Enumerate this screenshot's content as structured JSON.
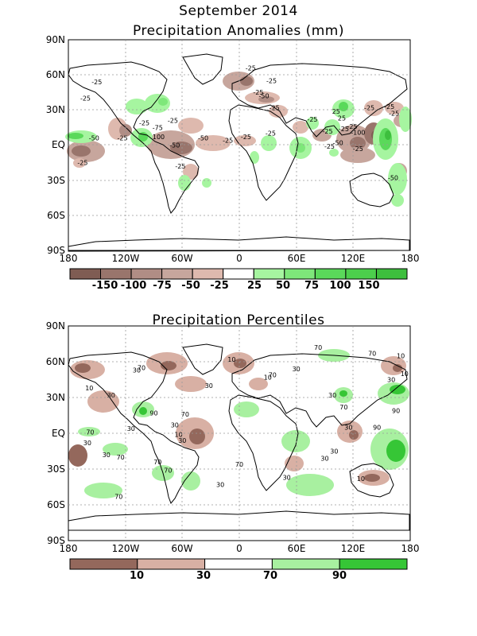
{
  "figure": {
    "title": "September 2014",
    "panel1_title": "Precipitation Anomalies (mm)",
    "panel2_title": "Precipitation Percentiles"
  },
  "lat_labels": [
    "90N",
    "60N",
    "30N",
    "EQ",
    "30S",
    "60S",
    "90S"
  ],
  "lon_labels": [
    "180",
    "120W",
    "60W",
    "0",
    "60E",
    "120E",
    "180"
  ],
  "anomaly_colorbar": {
    "labels": [
      "-150",
      "-100",
      "-75",
      "-50",
      "-25",
      "25",
      "50",
      "75",
      "100",
      "150"
    ],
    "colors": [
      "#7f5c53",
      "#99756c",
      "#b08d85",
      "#c7a69d",
      "#deb9ae",
      "#ffffff",
      "#a6f5a0",
      "#7ee77a",
      "#5ad95a",
      "#4ccf4c",
      "#3dbf3d"
    ]
  },
  "percentile_colorbar": {
    "labels": [
      "10",
      "30",
      "70",
      "90"
    ],
    "colors": [
      "#94685c",
      "#d8b0a4",
      "#ffffff",
      "#a8f0a0",
      "#36c636"
    ]
  },
  "anomaly_contour_labels": [
    {
      "text": "-25",
      "lon": -150,
      "lat": 52
    },
    {
      "text": "-25",
      "lon": -162,
      "lat": 38
    },
    {
      "text": "-50",
      "lon": -153,
      "lat": 4
    },
    {
      "text": "-25",
      "lon": -123,
      "lat": 4
    },
    {
      "text": "-75",
      "lon": -86,
      "lat": 13
    },
    {
      "text": "100",
      "lon": -85,
      "lat": 5
    },
    {
      "text": "-25",
      "lon": -100,
      "lat": 17
    },
    {
      "text": "-25",
      "lon": -70,
      "lat": 19
    },
    {
      "text": "-50",
      "lon": -68,
      "lat": -2
    },
    {
      "text": "-50",
      "lon": -38,
      "lat": 4
    },
    {
      "text": "-25",
      "lon": -12,
      "lat": 2
    },
    {
      "text": "-25",
      "lon": -62,
      "lat": -20
    },
    {
      "text": "-25",
      "lon": -165,
      "lat": -17
    },
    {
      "text": "-25",
      "lon": 12,
      "lat": 64
    },
    {
      "text": "-25",
      "lon": 34,
      "lat": 53
    },
    {
      "text": "-25",
      "lon": 20,
      "lat": 43
    },
    {
      "text": "-50",
      "lon": 26,
      "lat": 40
    },
    {
      "text": "-25",
      "lon": 37,
      "lat": 30
    },
    {
      "text": "-25",
      "lon": 7,
      "lat": 5
    },
    {
      "text": "-25",
      "lon": 33,
      "lat": 8
    },
    {
      "text": "-25",
      "lon": 77,
      "lat": 20
    },
    {
      "text": "-25",
      "lon": 93,
      "lat": 10
    },
    {
      "text": "25",
      "lon": 108,
      "lat": 21
    },
    {
      "text": "25",
      "lon": 102,
      "lat": 27
    },
    {
      "text": "-25",
      "lon": 110,
      "lat": 12
    },
    {
      "text": "-50",
      "lon": 104,
      "lat": 0
    },
    {
      "text": "-25",
      "lon": 95,
      "lat": -3
    },
    {
      "text": "-25",
      "lon": 125,
      "lat": -5
    },
    {
      "text": "-25",
      "lon": 119,
      "lat": 14
    },
    {
      "text": "-100",
      "lon": 125,
      "lat": 9
    },
    {
      "text": "-25",
      "lon": 137,
      "lat": 30
    },
    {
      "text": "-25",
      "lon": 158,
      "lat": 31
    },
    {
      "text": "-25",
      "lon": 163,
      "lat": 25
    },
    {
      "text": "-50",
      "lon": 162,
      "lat": -30
    }
  ],
  "percentile_contour_labels": [
    {
      "text": "10",
      "lon": -158,
      "lat": 36
    },
    {
      "text": "30",
      "lon": -135,
      "lat": 30
    },
    {
      "text": "70",
      "lon": -103,
      "lat": 53
    },
    {
      "text": "30",
      "lon": -108,
      "lat": 51
    },
    {
      "text": "30",
      "lon": -32,
      "lat": 38
    },
    {
      "text": "90",
      "lon": -90,
      "lat": 15
    },
    {
      "text": "70",
      "lon": -57,
      "lat": 14
    },
    {
      "text": "30",
      "lon": -114,
      "lat": 2
    },
    {
      "text": "70",
      "lon": -157,
      "lat": -1
    },
    {
      "text": "30",
      "lon": -160,
      "lat": -10
    },
    {
      "text": "30",
      "lon": -140,
      "lat": -20
    },
    {
      "text": "70",
      "lon": -125,
      "lat": -22
    },
    {
      "text": "30",
      "lon": -68,
      "lat": 5
    },
    {
      "text": "10",
      "lon": -64,
      "lat": -3
    },
    {
      "text": "30",
      "lon": -60,
      "lat": -8
    },
    {
      "text": "70",
      "lon": -86,
      "lat": -26
    },
    {
      "text": "70",
      "lon": -127,
      "lat": -55
    },
    {
      "text": "70",
      "lon": -75,
      "lat": -33
    },
    {
      "text": "30",
      "lon": -20,
      "lat": -45
    },
    {
      "text": "70",
      "lon": 0,
      "lat": -28
    },
    {
      "text": "10",
      "lon": -8,
      "lat": 60
    },
    {
      "text": "10",
      "lon": 30,
      "lat": 45
    },
    {
      "text": "30",
      "lon": 60,
      "lat": 52
    },
    {
      "text": "70",
      "lon": 35,
      "lat": 47
    },
    {
      "text": "70",
      "lon": 83,
      "lat": 70
    },
    {
      "text": "70",
      "lon": 140,
      "lat": 65
    },
    {
      "text": "70",
      "lon": 110,
      "lat": 20
    },
    {
      "text": "30",
      "lon": 98,
      "lat": 30
    },
    {
      "text": "30",
      "lon": 115,
      "lat": 3
    },
    {
      "text": "30",
      "lon": 100,
      "lat": -17
    },
    {
      "text": "30",
      "lon": 90,
      "lat": -23
    },
    {
      "text": "30",
      "lon": 50,
      "lat": -39
    },
    {
      "text": "10",
      "lon": 128,
      "lat": -40
    },
    {
      "text": "90",
      "lon": 145,
      "lat": 3
    },
    {
      "text": "90",
      "lon": 165,
      "lat": 17
    },
    {
      "text": "30",
      "lon": 160,
      "lat": 43
    },
    {
      "text": "10",
      "lon": 170,
      "lat": 63
    },
    {
      "text": "10",
      "lon": 174,
      "lat": 48
    }
  ]
}
